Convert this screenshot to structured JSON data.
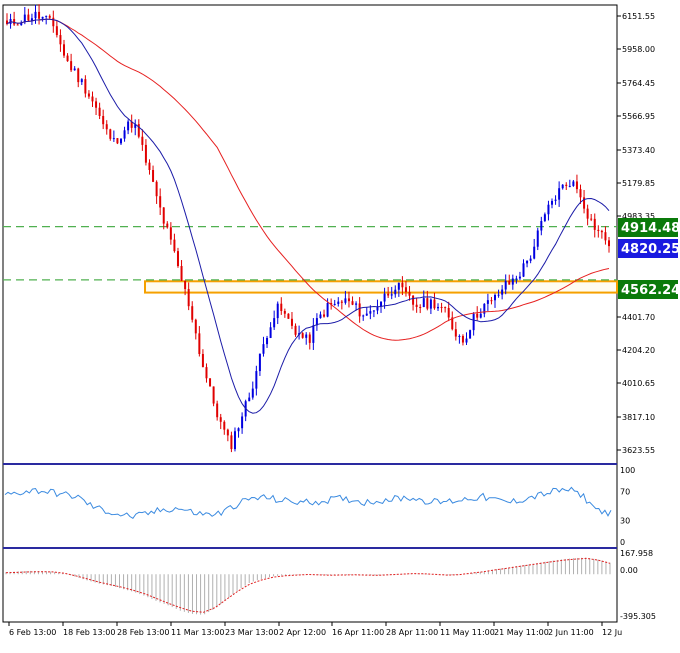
{
  "chart_data": {
    "type": "candlestick",
    "colors": {
      "up": "#0000e0",
      "down": "#e00000",
      "ma_fast": "#1c1ca8",
      "ma_slow": "#e62020",
      "rsi": "#3a8ae0",
      "macd_hist": "#b0b0b0",
      "macd_signal": "#e02020",
      "zone": "#f5a000",
      "hline": "#50b050",
      "separator": "#2a2aa0",
      "badge_green": "#0a7a0a",
      "badge_blue": "#1a1ae0"
    },
    "price_axis": {
      "ylim": [
        3560,
        6190
      ],
      "ticks": [
        "6151.55",
        "5958.00",
        "5764.45",
        "5566.95",
        "5373.40",
        "5179.85",
        "4983.35",
        "4401.70",
        "4204.20",
        "4010.65",
        "3817.10",
        "3623.55"
      ]
    },
    "price_series": [
      6070,
      6100,
      6120,
      6130,
      6105,
      6055,
      5880,
      5800,
      5720,
      5620,
      5480,
      5400,
      5470,
      5520,
      5350,
      5160,
      4970,
      4800,
      4600,
      4420,
      4150,
      3950,
      3780,
      3650,
      3800,
      3950,
      4150,
      4350,
      4450,
      4370,
      4300,
      4250,
      4380,
      4450,
      4470,
      4490,
      4440,
      4400,
      4460,
      4520,
      4580,
      4520,
      4460,
      4470,
      4480,
      4430,
      4320,
      4260,
      4380,
      4460,
      4480,
      4560,
      4600,
      4660,
      4760,
      4920,
      5050,
      5130,
      5180,
      5110,
      4960,
      4880,
      4820
    ],
    "rsi": {
      "levels": [
        "100",
        "70",
        "30",
        "0"
      ],
      "values": [
        65,
        69,
        72,
        70,
        66,
        63,
        50,
        43,
        38,
        35,
        40,
        45,
        47,
        41,
        38,
        40,
        52,
        60,
        62,
        58,
        56,
        55,
        57,
        60,
        59,
        55,
        58,
        60,
        62,
        58,
        55,
        57,
        60,
        63,
        58,
        55,
        60,
        65,
        70,
        73,
        65,
        45,
        40
      ]
    },
    "macd": {
      "labels": [
        "167.958",
        "0.00",
        "-395.305"
      ],
      "ylim": [
        -420,
        175
      ],
      "histogram": [
        20,
        28,
        32,
        30,
        25,
        10,
        -25,
        -60,
        -90,
        -110,
        -140,
        -170,
        -210,
        -260,
        -300,
        -350,
        -380,
        -390,
        -330,
        -240,
        -150,
        -80,
        -45,
        -20,
        -10,
        -5,
        0,
        -6,
        -10,
        -8,
        -4,
        -9,
        -12,
        -6,
        0,
        8,
        5,
        -2,
        -10,
        -6,
        10,
        25,
        45,
        60,
        78,
        95,
        112,
        130,
        145,
        155,
        160,
        140,
        110
      ],
      "signal": [
        15,
        18,
        22,
        24,
        22,
        10,
        -15,
        -45,
        -75,
        -100,
        -125,
        -155,
        -190,
        -235,
        -280,
        -320,
        -355,
        -365,
        -320,
        -240,
        -160,
        -95,
        -55,
        -28,
        -15,
        -8,
        -3,
        -6,
        -9,
        -7,
        -5,
        -8,
        -10,
        -5,
        0,
        6,
        4,
        -2,
        -8,
        -4,
        10,
        22,
        40,
        55,
        72,
        88,
        104,
        120,
        135,
        145,
        152,
        135,
        105
      ]
    },
    "levels": {
      "resistance": "4914.48",
      "current": "4820.25",
      "support": "4562.24",
      "zone": [
        4535,
        4600
      ]
    },
    "x_ticks": [
      "6 Feb 13:00",
      "18 Feb 13:00",
      "28 Feb 13:00",
      "11 Mar 13:00",
      "23 Mar 13:00",
      "2 Apr 12:00",
      "16 Apr 11:00",
      "28 Apr 11:00",
      "11 May 11:00",
      "21 May 11:00",
      "2 Jun 11:00",
      "12 Ju"
    ]
  }
}
